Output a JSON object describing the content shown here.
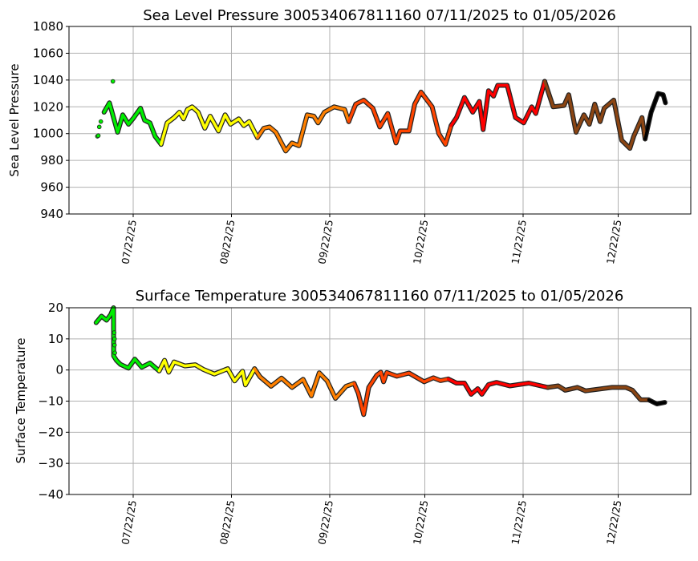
{
  "chart_data": [
    {
      "type": "line",
      "title": "Sea Level Pressure 300534067811160  07/11/2025 to 01/05/2026",
      "xlabel": "",
      "ylabel": "Sea Level Pressure",
      "ylim": [
        940,
        1080
      ],
      "yticks": [
        940,
        960,
        980,
        1000,
        1020,
        1040,
        1060,
        1080
      ],
      "x_unit": "days since 07/22/25",
      "xlim": [
        -20.25,
        175.9
      ],
      "xticks": [
        0,
        31,
        62,
        92,
        123,
        153
      ],
      "xtick_labels": [
        "07/22/25",
        "08/22/25",
        "09/22/25",
        "10/22/25",
        "11/22/25",
        "12/22/25"
      ],
      "grid": true,
      "color_segments": [
        {
          "from_day": -12,
          "color": "#00ee00"
        },
        {
          "from_day": 9,
          "color": "#ffff00"
        },
        {
          "from_day": 40,
          "color": "#ff8000"
        },
        {
          "from_day": 70,
          "color": "#ff4500"
        },
        {
          "from_day": 101,
          "color": "#ff0000"
        },
        {
          "from_day": 132,
          "color": "#8b4513"
        },
        {
          "from_day": 163,
          "color": "#000000"
        }
      ],
      "isolated_points": [
        [
          -11.3,
          998
        ],
        [
          -11.0,
          998.5
        ],
        [
          -10.7,
          1005
        ],
        [
          -10.2,
          1009
        ],
        [
          -6.4,
          1039
        ]
      ],
      "x": [
        -9.2,
        -7.5,
        -4.9,
        -3.3,
        -1.5,
        0.2,
        2.3,
        3.6,
        5.3,
        6.9,
        8.8,
        10.7,
        12.9,
        14.6,
        15.9,
        17.1,
        18.6,
        20.5,
        22.6,
        24.3,
        26.9,
        29,
        30.7,
        33.3,
        34.9,
        36.6,
        39.2,
        41.2,
        43,
        45,
        48.1,
        50.1,
        52.3,
        54.9,
        57,
        58.3,
        60.3,
        63.4,
        66.7,
        68,
        70.2,
        72.7,
        75.6,
        77.8,
        80.3,
        82.9,
        84.2,
        87,
        88.8,
        90.8,
        94.3,
        96.4,
        98.5,
        100.3,
        102,
        104.5,
        107.1,
        109.2,
        110.4,
        112.1,
        113.7,
        115,
        118,
        120.6,
        123.2,
        125.7,
        127,
        129.8,
        132.5,
        135.9,
        137.4,
        139.7,
        142.2,
        143.9,
        145.6,
        147.3,
        148.6,
        151.6,
        154.1,
        156.7,
        157.9,
        160.5,
        161.5,
        163.4,
        165.6,
        167.2,
        167.9
      ],
      "values": [
        1016,
        1023,
        1001,
        1014,
        1007,
        1012,
        1019,
        1010,
        1008,
        998,
        992,
        1008,
        1012,
        1016,
        1011,
        1018,
        1020,
        1016,
        1004,
        1013,
        1002,
        1014,
        1007,
        1011,
        1006,
        1009,
        997,
        1004,
        1005,
        1001,
        987,
        993,
        991,
        1014,
        1013,
        1008,
        1016,
        1020,
        1018,
        1009,
        1022,
        1025,
        1019,
        1005,
        1015,
        993,
        1002,
        1002,
        1022,
        1031,
        1020,
        1000,
        992,
        1006,
        1012,
        1027,
        1016,
        1024,
        1003,
        1032,
        1028,
        1036,
        1036,
        1012,
        1008,
        1020,
        1015,
        1039,
        1020,
        1021,
        1029,
        1001,
        1014,
        1007,
        1022,
        1009,
        1019,
        1025,
        995,
        989,
        998,
        1012,
        996,
        1016,
        1030,
        1029,
        1023
      ]
    },
    {
      "type": "line",
      "title": "Surface Temperature 300534067811160  07/11/2025 to 01/05/2026",
      "xlabel": "",
      "ylabel": "Surface Temperature",
      "ylim": [
        -40,
        20
      ],
      "yticks": [
        -40,
        -30,
        -20,
        -10,
        0,
        10,
        20
      ],
      "x_unit": "days since 07/22/25",
      "xlim": [
        -20.25,
        175.9
      ],
      "xticks": [
        0,
        31,
        62,
        92,
        123,
        153
      ],
      "xtick_labels": [
        "07/22/25",
        "08/22/25",
        "09/22/25",
        "10/22/25",
        "11/22/25",
        "12/22/25"
      ],
      "grid": true,
      "color_segments": [
        {
          "from_day": -12,
          "color": "#00ee00"
        },
        {
          "from_day": 9,
          "color": "#ffff00"
        },
        {
          "from_day": 40,
          "color": "#ff8000"
        },
        {
          "from_day": 70,
          "color": "#ff4500"
        },
        {
          "from_day": 101,
          "color": "#ff0000"
        },
        {
          "from_day": 132,
          "color": "#8b4513"
        },
        {
          "from_day": 163,
          "color": "#000000"
        }
      ],
      "isolated_points": [
        [
          -6.0,
          12
        ],
        [
          -5.9,
          10
        ],
        [
          -5.9,
          8
        ],
        [
          -5.8,
          5.5
        ]
      ],
      "x": [
        -11.7,
        -10,
        -8.4,
        -7.1,
        -6.2,
        -6.15,
        -5.3,
        -4,
        -1.5,
        0.5,
        2.7,
        5.3,
        8.2,
        9.9,
        11.2,
        12.9,
        16.3,
        19.6,
        22.1,
        25.6,
        29.8,
        32,
        34.5,
        35.4,
        38.3,
        40,
        43.5,
        46.8,
        50.1,
        53.6,
        56.2,
        58.7,
        61.2,
        63.8,
        67.2,
        69.7,
        71,
        72.7,
        74.3,
        76.8,
        78.1,
        79,
        80,
        83.2,
        87,
        91.8,
        94.7,
        96.9,
        99.4,
        102,
        104.5,
        106.6,
        108.7,
        110,
        112.1,
        114.6,
        118.8,
        124.8,
        130.8,
        134.1,
        136.3,
        140.1,
        142.7,
        151.1,
        155.4,
        157.5,
        160.1,
        162.6,
        165.2,
        167.7
      ],
      "values": [
        15.2,
        17.3,
        16,
        17.8,
        20,
        4.5,
        3.1,
        1.8,
        0.6,
        3.5,
        0.9,
        2.2,
        -0.3,
        3.1,
        -0.7,
        2.6,
        1.3,
        1.7,
        0.2,
        -1.3,
        0.4,
        -3.5,
        -0.4,
        -4.8,
        0.4,
        -2.2,
        -5.2,
        -2.6,
        -5.6,
        -3,
        -8.3,
        -0.9,
        -3.5,
        -9.1,
        -5.2,
        -4.3,
        -7.4,
        -14.3,
        -5.6,
        -1.7,
        -0.7,
        -3.8,
        -0.8,
        -2,
        -1,
        -3.8,
        -2.5,
        -3.4,
        -2.9,
        -4.2,
        -4.2,
        -7.8,
        -6,
        -7.8,
        -4.7,
        -4,
        -5.1,
        -4.2,
        -5.6,
        -5.1,
        -6.5,
        -5.6,
        -6.7,
        -5.6,
        -5.6,
        -6.5,
        -9.6,
        -9.6,
        -10.9,
        -10.4
      ]
    }
  ]
}
